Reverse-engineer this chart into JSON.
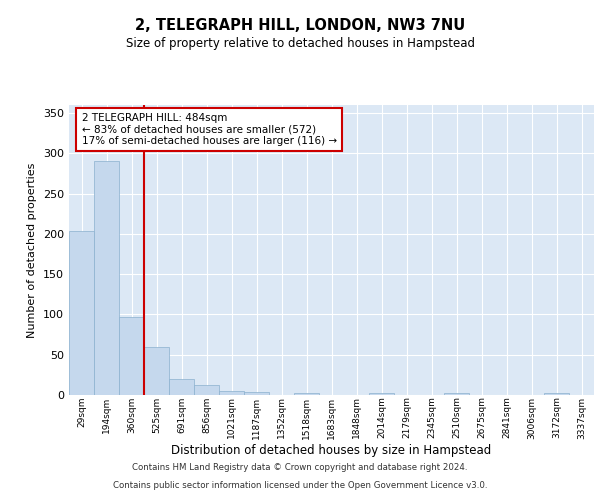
{
  "title": "2, TELEGRAPH HILL, LONDON, NW3 7NU",
  "subtitle": "Size of property relative to detached houses in Hampstead",
  "xlabel": "Distribution of detached houses by size in Hampstead",
  "ylabel": "Number of detached properties",
  "bar_labels": [
    "29sqm",
    "194sqm",
    "360sqm",
    "525sqm",
    "691sqm",
    "856sqm",
    "1021sqm",
    "1187sqm",
    "1352sqm",
    "1518sqm",
    "1683sqm",
    "1848sqm",
    "2014sqm",
    "2179sqm",
    "2345sqm",
    "2510sqm",
    "2675sqm",
    "2841sqm",
    "3006sqm",
    "3172sqm",
    "3337sqm"
  ],
  "bar_heights": [
    204,
    291,
    97,
    60,
    20,
    12,
    5,
    4,
    0,
    2,
    0,
    0,
    2,
    0,
    0,
    2,
    0,
    0,
    0,
    2,
    0
  ],
  "bar_color": "#c5d8ed",
  "bar_edge_color": "#8ab0ce",
  "vline_x_pos": 2.5,
  "vline_color": "#cc0000",
  "annotation_title": "2 TELEGRAPH HILL: 484sqm",
  "annotation_line2": "← 83% of detached houses are smaller (572)",
  "annotation_line3": "17% of semi-detached houses are larger (116) →",
  "annotation_box_color": "#cc0000",
  "ylim": [
    0,
    360
  ],
  "yticks": [
    0,
    50,
    100,
    150,
    200,
    250,
    300,
    350
  ],
  "bg_color": "#dce8f5",
  "grid_color": "#ffffff",
  "footer_line1": "Contains HM Land Registry data © Crown copyright and database right 2024.",
  "footer_line2": "Contains public sector information licensed under the Open Government Licence v3.0."
}
